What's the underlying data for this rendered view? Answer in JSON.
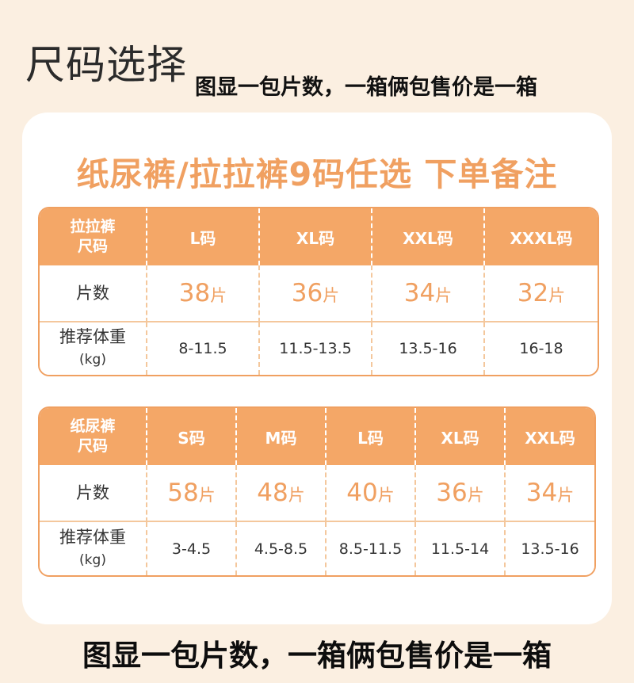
{
  "title": "尺码选择",
  "subtitle": "图显一包片数，一箱俩包售价是一箱",
  "headline": "纸尿裤/拉拉裤9码任选 下单备注",
  "table1": {
    "row_header": [
      "拉拉裤",
      "尺码"
    ],
    "sizes": [
      "L码",
      "XL码",
      "XXL码",
      "XXXL码"
    ],
    "count_label": "片数",
    "counts": [
      "38",
      "36",
      "34",
      "32"
    ],
    "count_unit": "片",
    "weight_label": "推荐体重",
    "weight_unit": "(kg)",
    "weights": [
      "8-11.5",
      "11.5-13.5",
      "13.5-16",
      "16-18"
    ]
  },
  "table2": {
    "row_header": [
      "纸尿裤",
      "尺码"
    ],
    "sizes": [
      "S码",
      "M码",
      "L码",
      "XL码",
      "XXL码"
    ],
    "count_label": "片数",
    "counts": [
      "58",
      "48",
      "40",
      "36",
      "34"
    ],
    "count_unit": "片",
    "weight_label": "推荐体重",
    "weight_unit": "(kg)",
    "weights": [
      "3-4.5",
      "4.5-8.5",
      "8.5-11.5",
      "11.5-14",
      "13.5-16"
    ]
  },
  "footer": "图显一包片数，一箱俩包售价是一箱",
  "colors": {
    "accent": "#f4a767",
    "background": "#fbefe1",
    "card": "#ffffff"
  }
}
